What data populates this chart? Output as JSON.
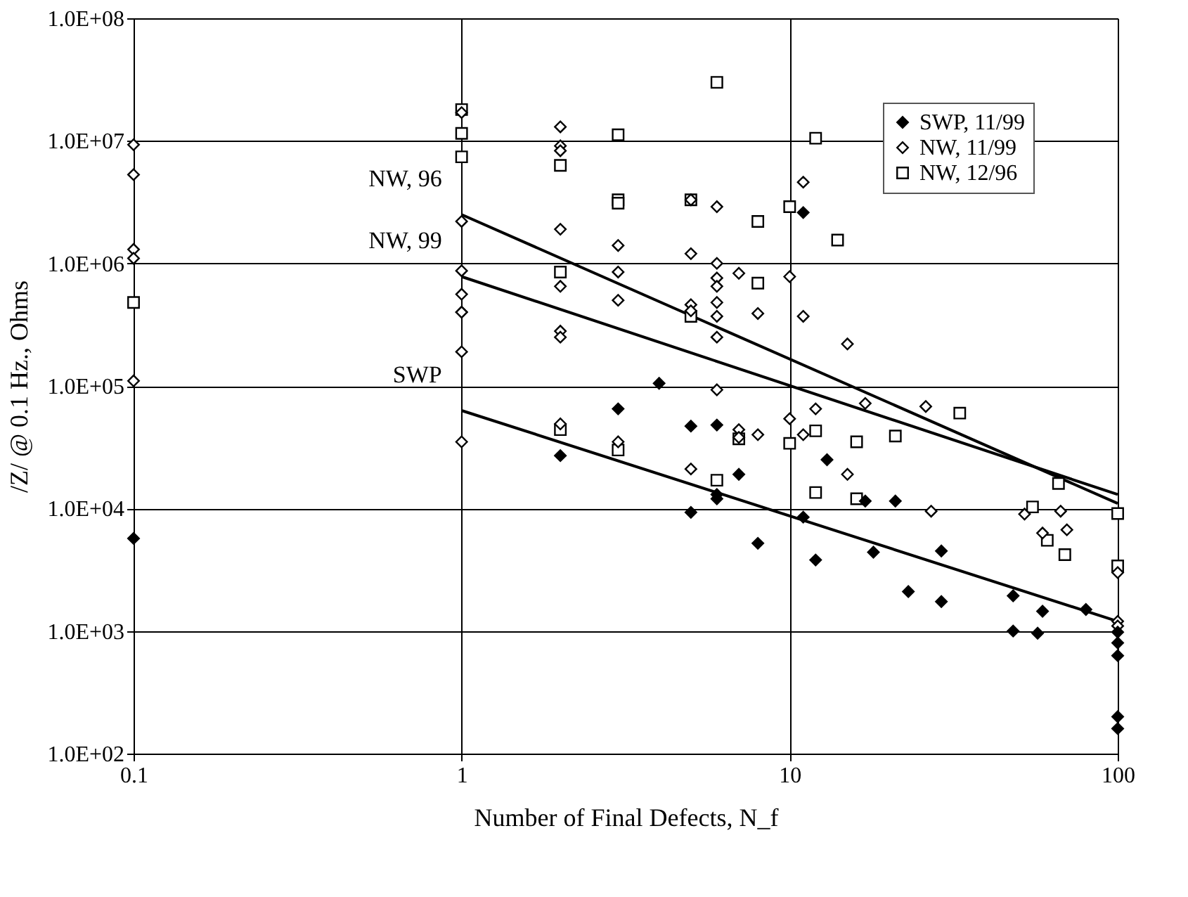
{
  "chart_data": {
    "type": "scatter",
    "xlabel": "Number of Final Defects, N_f",
    "ylabel": "/Z/ @ 0.1 Hz., Ohms",
    "log": "xy",
    "grid": true,
    "legend": "top right",
    "xlim": [
      0.1,
      100
    ],
    "xticks": [
      0.1,
      1,
      10,
      100
    ],
    "ylim": [
      100,
      100000000
    ],
    "yticks": [
      {
        "value": 100,
        "label": "1.0E+02"
      },
      {
        "value": 1000,
        "label": "1.0E+03"
      },
      {
        "value": 10000,
        "label": "1.0E+04"
      },
      {
        "value": 100000,
        "label": "1.0E+05"
      },
      {
        "value": 1000000,
        "label": "1.0E+06"
      },
      {
        "value": 10000000,
        "label": "1.0E+07"
      },
      {
        "value": 100000000,
        "label": "1.0E+08"
      }
    ],
    "series": [
      {
        "name": "SWP, 11/99",
        "color": "#000000",
        "marker": "diamond",
        "x": [
          0.1,
          2,
          3,
          4,
          5,
          6,
          7,
          6,
          6,
          5,
          8,
          11,
          11,
          12,
          13,
          17,
          18,
          21,
          23,
          29,
          29,
          48,
          48,
          59,
          57,
          80,
          100,
          100,
          100,
          100,
          100
        ],
        "values": [
          5700,
          27000,
          65000,
          105000,
          47000,
          48000,
          19000,
          13000,
          12000,
          9300,
          5200,
          2600000,
          8500,
          3800,
          25000,
          11500,
          4400,
          11500,
          2100,
          4500,
          1740,
          1940,
          1000,
          1450,
          960,
          1500,
          980,
          800,
          630,
          200,
          160
        ]
      },
      {
        "name": "NW, 11/99",
        "color": "#ffffff",
        "marker": "diamond",
        "x": [
          0.1,
          0.1,
          0.1,
          0.1,
          0.1,
          1,
          1,
          1,
          1,
          1,
          1,
          1,
          1,
          2,
          2,
          2,
          2,
          2,
          2,
          2,
          2,
          3,
          3,
          3,
          3,
          5,
          5,
          5,
          5,
          5,
          6,
          6,
          6,
          6,
          6,
          6,
          6,
          6,
          7,
          7,
          7,
          8,
          8,
          10,
          10,
          11,
          11,
          11,
          12,
          15,
          15,
          17,
          26,
          27,
          52,
          59,
          67,
          70,
          100,
          100,
          100
        ],
        "values": [
          9300000,
          5300000,
          1300000,
          1100000,
          110000,
          17000000,
          2200000,
          870000,
          560000,
          400000,
          400000,
          190000,
          35000,
          13000000,
          9100000,
          8300000,
          1900000,
          650000,
          280000,
          250000,
          49000,
          1400000,
          850000,
          500000,
          35000,
          3300000,
          1200000,
          460000,
          410000,
          21000,
          2900000,
          1000000,
          760000,
          650000,
          480000,
          370000,
          250000,
          93000,
          830000,
          44000,
          38000,
          390000,
          40000,
          780000,
          54000,
          4600000,
          370000,
          40000,
          65000,
          220000,
          19000,
          72000,
          68000,
          9500,
          9000,
          6300,
          9500,
          6700,
          3000,
          1200,
          1100
        ]
      },
      {
        "name": "NW, 12/96",
        "color": "#ffffff",
        "marker": "square",
        "x": [
          0.1,
          1,
          1,
          1,
          2,
          2,
          2,
          3,
          3,
          3,
          3,
          5,
          5,
          6,
          6,
          7,
          8,
          8,
          10,
          10,
          12,
          12,
          12,
          14,
          16,
          16,
          21,
          33,
          55,
          61,
          66,
          69,
          100,
          100
        ],
        "values": [
          480000,
          18000000,
          11500000,
          7400000,
          6300000,
          850000,
          44000,
          11200000,
          3300000,
          3100000,
          30000,
          3300000,
          370000,
          30000000,
          17000,
          37000,
          2200000,
          690000,
          2900000,
          34000,
          10500000,
          43000,
          13500,
          1550000,
          35000,
          12000,
          39000,
          60000,
          10300,
          5500,
          16000,
          4200,
          9100,
          3400
        ]
      },
      {
        "type": "line",
        "color": "#000000",
        "x": [
          1,
          100
        ],
        "values": [
          2500000,
          11000
        ]
      },
      {
        "type": "line",
        "color": "#000000",
        "x": [
          1,
          100
        ],
        "values": [
          780000,
          13000
        ]
      },
      {
        "type": "line",
        "color": "#000000",
        "x": [
          1,
          100
        ],
        "values": [
          63000,
          1200
        ]
      }
    ],
    "annotations": [
      "NW, 96",
      "NW, 99",
      "SWP"
    ]
  }
}
